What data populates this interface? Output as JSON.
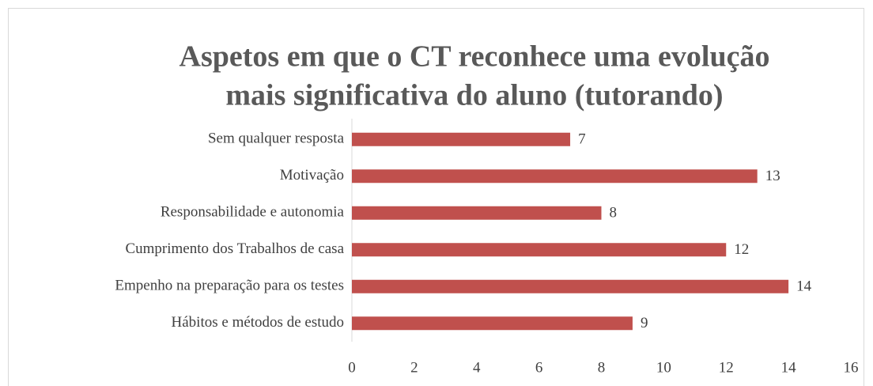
{
  "chart_data": {
    "type": "bar",
    "orientation": "horizontal",
    "title": [
      "Aspetos em que o CT reconhece uma  evolução",
      "mais significativa do aluno (tutorando)"
    ],
    "categories": [
      "Sem qualquer resposta",
      "Motivação",
      "Responsabilidade e autonomia",
      "Cumprimento dos Trabalhos de casa",
      "Empenho na preparação para os testes",
      "Hábitos e métodos de estudo"
    ],
    "values": [
      7,
      13,
      8,
      12,
      14,
      9
    ],
    "color": "#c0504d",
    "xlim": [
      0,
      16
    ],
    "xticks": [
      0,
      2,
      4,
      6,
      8,
      10,
      12,
      14,
      16
    ],
    "grid": false,
    "data_labels": true
  }
}
